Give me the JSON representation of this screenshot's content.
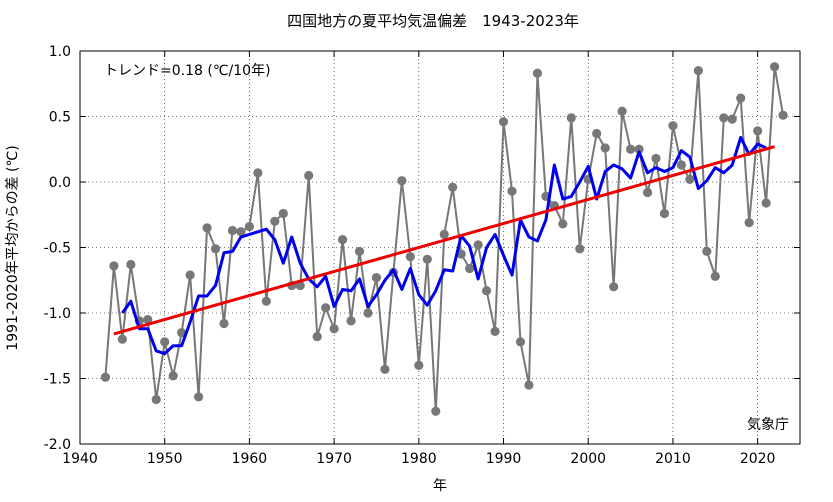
{
  "chart_data": {
    "type": "line",
    "title": "四国地方の夏平均気温偏差　1943-2023年",
    "xlabel": "年",
    "ylabel": "1991-2020年平均からの差 (℃)",
    "trend_label": "トレンド=0.18 (℃/10年)",
    "credit": "気象庁",
    "xlim": [
      1940,
      2025
    ],
    "ylim": [
      -2.0,
      1.0
    ],
    "x_ticks": [
      1940,
      1950,
      1960,
      1970,
      1980,
      1990,
      2000,
      2010,
      2020
    ],
    "y_ticks": [
      -2.0,
      -1.5,
      -1.0,
      -0.5,
      0.0,
      0.5,
      1.0
    ],
    "y_tick_labels": [
      "-2.0",
      "-1.5",
      "-1.0",
      "-0.5",
      "0.0",
      "0.5",
      "1.0"
    ],
    "grid": true,
    "years": [
      1943,
      1944,
      1945,
      1946,
      1947,
      1948,
      1949,
      1950,
      1951,
      1952,
      1953,
      1954,
      1955,
      1956,
      1957,
      1958,
      1959,
      1960,
      1961,
      1962,
      1963,
      1964,
      1965,
      1966,
      1967,
      1968,
      1969,
      1970,
      1971,
      1972,
      1973,
      1974,
      1975,
      1976,
      1977,
      1978,
      1979,
      1980,
      1981,
      1982,
      1983,
      1984,
      1985,
      1986,
      1987,
      1988,
      1989,
      1990,
      1991,
      1992,
      1993,
      1994,
      1995,
      1996,
      1997,
      1998,
      1999,
      2000,
      2001,
      2002,
      2003,
      2004,
      2005,
      2006,
      2007,
      2008,
      2009,
      2010,
      2011,
      2012,
      2013,
      2014,
      2015,
      2016,
      2017,
      2018,
      2019,
      2020,
      2021,
      2022,
      2023
    ],
    "series": [
      {
        "values": [
          -1.49,
          -0.64,
          -1.2,
          -0.63,
          -1.06,
          -1.05,
          -1.66,
          -1.22,
          -1.48,
          -1.15,
          -0.71,
          -1.64,
          -0.35,
          -0.51,
          -1.08,
          -0.37,
          -0.38,
          -0.34,
          0.07,
          -0.91,
          -0.3,
          -0.24,
          -0.79,
          -0.79,
          0.05,
          -1.18,
          -0.96,
          -1.12,
          -0.44,
          -1.06,
          -0.53,
          -1.0,
          -0.73,
          -1.43,
          -0.69,
          0.01,
          -0.57,
          -1.4,
          -0.59,
          -1.75,
          -0.4,
          -0.04,
          -0.55,
          -0.66,
          -0.48,
          -0.83,
          -1.14,
          0.46,
          -0.07,
          -1.22,
          -1.55,
          0.83,
          -0.11,
          -0.18,
          -0.32,
          0.49,
          -0.51,
          0.02,
          0.37,
          0.26,
          -0.8,
          0.54,
          0.25,
          0.25,
          -0.08,
          0.18,
          -0.24,
          0.43,
          0.13,
          0.02,
          0.85,
          -0.53,
          -0.72,
          0.49,
          0.48,
          0.64,
          -0.31,
          0.39,
          -0.16,
          0.88,
          0.51
        ],
        "color": "#777777"
      },
      {
        "start_year": 1945,
        "values": [
          -1.0,
          -0.91,
          -1.12,
          -1.12,
          -1.29,
          -1.31,
          -1.25,
          -1.25,
          -1.07,
          -0.87,
          -0.87,
          -0.79,
          -0.54,
          -0.53,
          -0.42,
          -0.4,
          -0.38,
          -0.36,
          -0.44,
          -0.62,
          -0.42,
          -0.62,
          -0.74,
          -0.8,
          -0.72,
          -0.95,
          -0.82,
          -0.83,
          -0.74,
          -0.95,
          -0.86,
          -0.75,
          -0.67,
          -0.82,
          -0.66,
          -0.86,
          -0.94,
          -0.83,
          -0.67,
          -0.68,
          -0.41,
          -0.49,
          -0.74,
          -0.5,
          -0.4,
          -0.56,
          -0.71,
          -0.29,
          -0.42,
          -0.45,
          -0.29,
          0.13,
          -0.13,
          -0.11,
          0.0,
          0.12,
          -0.13,
          0.08,
          0.13,
          0.1,
          0.03,
          0.23,
          0.07,
          0.11,
          0.08,
          0.11,
          0.24,
          0.19,
          -0.05,
          0.01,
          0.11,
          0.07,
          0.13,
          0.34,
          0.21,
          0.29,
          0.26
        ],
        "color": "#0000ee"
      },
      {
        "x": [
          1944,
          2022
        ],
        "values": [
          -1.16,
          0.27
        ],
        "color": "#ee0000"
      }
    ]
  }
}
